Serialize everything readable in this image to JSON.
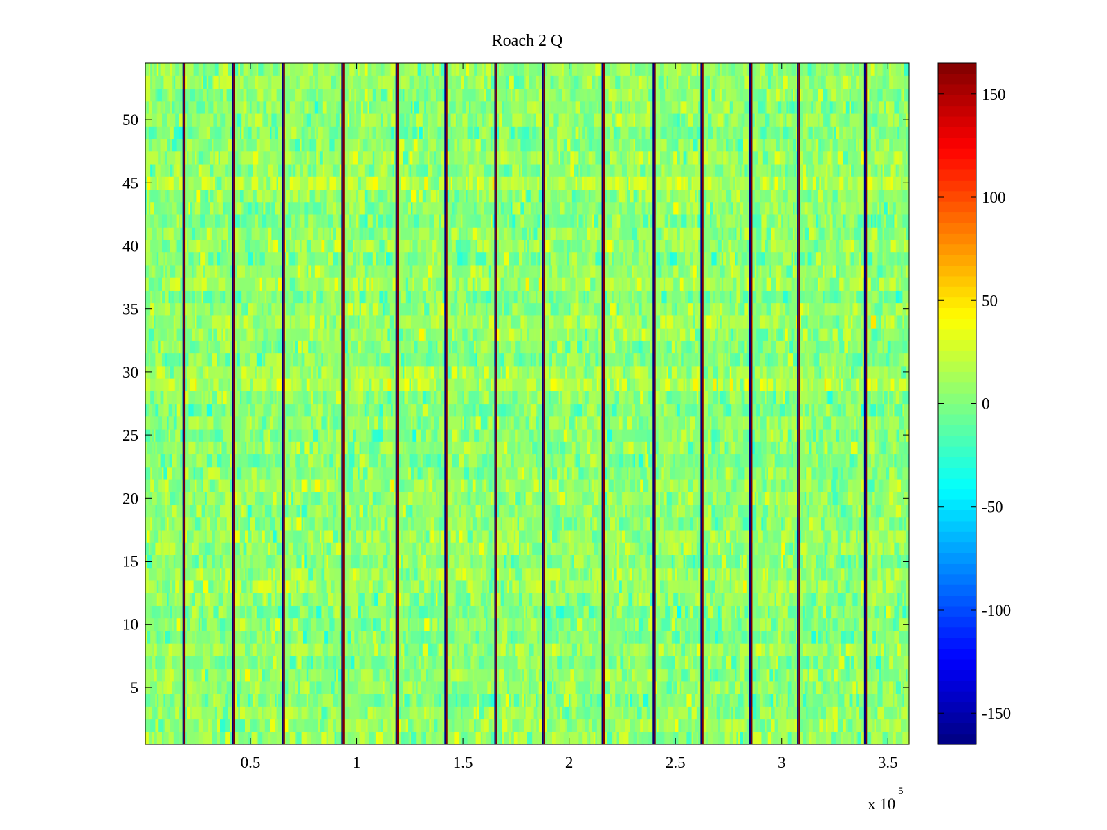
{
  "chart_data": {
    "type": "heatmap",
    "title": "Roach 2 Q",
    "xlabel": "",
    "ylabel": "",
    "x_range": [
      500,
      360000
    ],
    "y_range": [
      0.5,
      54.5
    ],
    "x_ticks": [
      50000,
      100000,
      150000,
      200000,
      250000,
      300000,
      350000
    ],
    "x_tick_labels": [
      "0.5",
      "1",
      "1.5",
      "2",
      "2.5",
      "3",
      "3.5"
    ],
    "x_exponent_label": "x 10",
    "x_exponent_power": "5",
    "y_ticks": [
      5,
      10,
      15,
      20,
      25,
      30,
      35,
      40,
      45,
      50
    ],
    "y_tick_labels": [
      "5",
      "10",
      "15",
      "20",
      "25",
      "30",
      "35",
      "40",
      "45",
      "50"
    ],
    "rows": 54,
    "colormap": "jet",
    "clim": [
      -165,
      165
    ],
    "colorbar": {
      "ticks": [
        -150,
        -100,
        -50,
        0,
        50,
        100,
        150
      ],
      "tick_labels": [
        "-150",
        "-100",
        "-50",
        "0",
        "50",
        "100",
        "150"
      ],
      "placement": "right"
    },
    "value_distribution": {
      "mean": 5,
      "typical_range": [
        -40,
        40
      ]
    },
    "brighter_rows": [
      13,
      17,
      29,
      37,
      45
    ],
    "vertical_stripes_x": [
      18700,
      42000,
      65500,
      93500,
      119000,
      142000,
      165500,
      188000,
      216000,
      240000,
      262500,
      285500,
      308000,
      339500
    ],
    "grid": false
  }
}
